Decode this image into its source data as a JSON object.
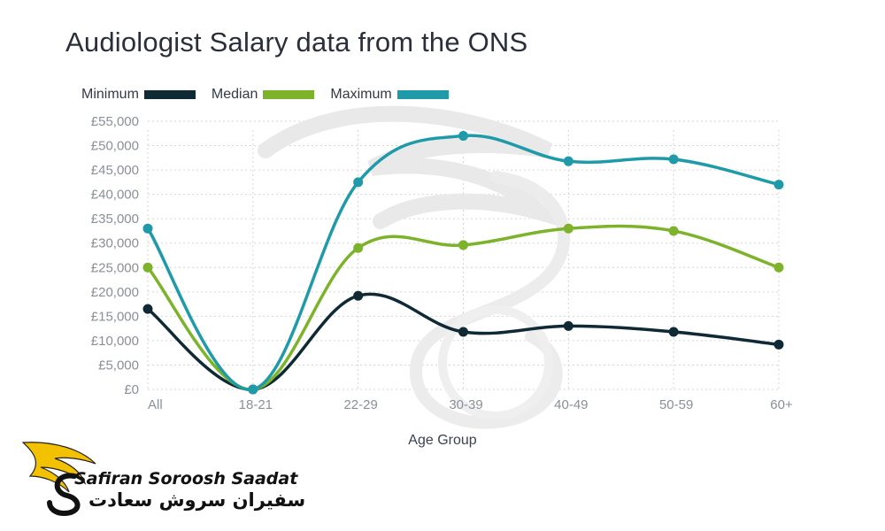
{
  "chart_data": {
    "type": "line",
    "title": "Audiologist Salary data from the ONS",
    "xlabel": "Age Group",
    "ylabel": "",
    "categories": [
      "All",
      "18-21",
      "22-29",
      "30-39",
      "40-49",
      "50-59",
      "60+"
    ],
    "y_ticks": [
      "£0",
      "£5,000",
      "£10,000",
      "£15,000",
      "£20,000",
      "£25,000",
      "£30,000",
      "£35,000",
      "£40,000",
      "£45,000",
      "£50,000",
      "£55,000"
    ],
    "ylim": [
      0,
      55000
    ],
    "grid": true,
    "legend_position": "top-left",
    "series": [
      {
        "name": "Minimum",
        "color": "#0f2a35",
        "values": [
          16500,
          0,
          19200,
          11800,
          13000,
          11800,
          9200
        ]
      },
      {
        "name": "Median",
        "color": "#7db32a",
        "values": [
          25000,
          0,
          29000,
          29600,
          33000,
          32500,
          25000
        ]
      },
      {
        "name": "Maximum",
        "color": "#1e9aa8",
        "values": [
          33000,
          0,
          42500,
          52000,
          46800,
          47200,
          42000
        ]
      }
    ]
  },
  "brand": {
    "name_en": "Safiran Soroosh Saadat",
    "name_fa": "سفیران سروش سعادت",
    "accent_color": "#f2c200"
  }
}
